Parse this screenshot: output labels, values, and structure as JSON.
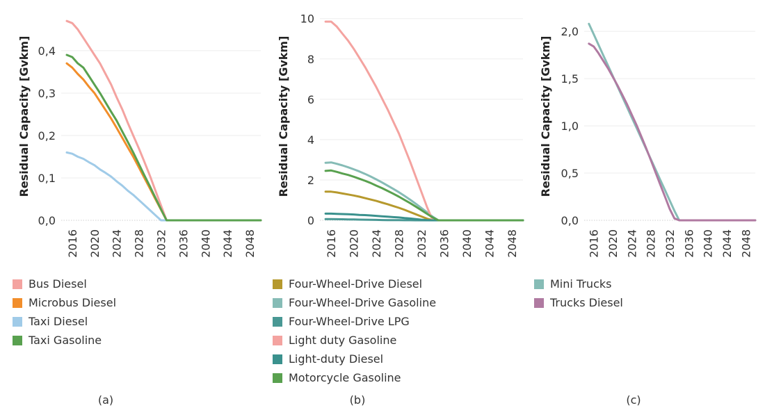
{
  "chart_data": [
    {
      "type": "line",
      "ylabel": "Residual Capacity [Gvkm]",
      "caption": "(a)",
      "ylim": [
        0,
        0.49
      ],
      "yticks": [
        0.0,
        0.1,
        0.2,
        0.3,
        0.4
      ],
      "yticklabels": [
        "0,0",
        "0,1",
        "0,2",
        "0,3",
        "0,4"
      ],
      "xlim": [
        2014,
        2050
      ],
      "xticks": [
        2016,
        2020,
        2024,
        2028,
        2032,
        2036,
        2040,
        2044,
        2048
      ],
      "xticklabels": [
        "2016",
        "2020",
        "2024",
        "2028",
        "2032",
        "2036",
        "2040",
        "2044",
        "2048"
      ],
      "x": [
        2015,
        2016,
        2017,
        2018,
        2019,
        2020,
        2021,
        2022,
        2023,
        2024,
        2025,
        2026,
        2027,
        2028,
        2029,
        2030,
        2031,
        2032,
        2033,
        2034,
        2035,
        2036,
        2037,
        2038,
        2039,
        2040,
        2041,
        2042,
        2043,
        2044,
        2045,
        2046,
        2047,
        2048,
        2049,
        2050
      ],
      "series": [
        {
          "name": "Bus Diesel",
          "color": "#f4a3a0",
          "values": [
            0.47,
            0.465,
            0.45,
            0.43,
            0.41,
            0.39,
            0.37,
            0.345,
            0.32,
            0.29,
            0.262,
            0.23,
            0.2,
            0.17,
            0.138,
            0.105,
            0.07,
            0.035,
            0.0,
            0,
            0,
            0,
            0,
            0,
            0,
            0,
            0,
            0,
            0,
            0,
            0,
            0,
            0,
            0,
            0,
            0
          ]
        },
        {
          "name": "Microbus Diesel",
          "color": "#f28e2b",
          "values": [
            0.37,
            0.36,
            0.345,
            0.332,
            0.315,
            0.3,
            0.28,
            0.26,
            0.24,
            0.218,
            0.195,
            0.172,
            0.15,
            0.125,
            0.1,
            0.075,
            0.05,
            0.025,
            0.0,
            0,
            0,
            0,
            0,
            0,
            0,
            0,
            0,
            0,
            0,
            0,
            0,
            0,
            0,
            0,
            0,
            0
          ]
        },
        {
          "name": "Taxi Diesel",
          "color": "#a0cbe8",
          "values": [
            0.16,
            0.157,
            0.15,
            0.145,
            0.137,
            0.13,
            0.12,
            0.112,
            0.103,
            0.092,
            0.082,
            0.07,
            0.06,
            0.048,
            0.036,
            0.024,
            0.012,
            0.0,
            0,
            0,
            0,
            0,
            0,
            0,
            0,
            0,
            0,
            0,
            0,
            0,
            0,
            0,
            0,
            0,
            0,
            0
          ]
        },
        {
          "name": "Taxi Gasoline",
          "color": "#59a14f",
          "values": [
            0.39,
            0.385,
            0.37,
            0.36,
            0.34,
            0.32,
            0.3,
            0.278,
            0.256,
            0.235,
            0.21,
            0.185,
            0.16,
            0.133,
            0.106,
            0.08,
            0.053,
            0.026,
            0.0,
            0,
            0,
            0,
            0,
            0,
            0,
            0,
            0,
            0,
            0,
            0,
            0,
            0,
            0,
            0,
            0,
            0
          ]
        }
      ]
    },
    {
      "type": "line",
      "ylabel": "Residual Capacity [Gvkm]",
      "caption": "(b)",
      "ylim": [
        0,
        10.3
      ],
      "yticks": [
        0,
        2,
        4,
        6,
        8,
        10
      ],
      "yticklabels": [
        "0",
        "2",
        "4",
        "6",
        "8",
        "10"
      ],
      "xlim": [
        2014,
        2050
      ],
      "xticks": [
        2016,
        2020,
        2024,
        2028,
        2032,
        2036,
        2040,
        2044,
        2048
      ],
      "xticklabels": [
        "2016",
        "2020",
        "2024",
        "2028",
        "2032",
        "2036",
        "2040",
        "2044",
        "2048"
      ],
      "x": [
        2015,
        2016,
        2017,
        2018,
        2019,
        2020,
        2021,
        2022,
        2023,
        2024,
        2025,
        2026,
        2027,
        2028,
        2029,
        2030,
        2031,
        2032,
        2033,
        2034,
        2035,
        2036,
        2037,
        2038,
        2039,
        2040,
        2041,
        2042,
        2043,
        2044,
        2045,
        2046,
        2047,
        2048,
        2049,
        2050
      ],
      "series": [
        {
          "name": "Four-Wheel-Drive Diesel",
          "color": "#b6992d",
          "values": [
            1.42,
            1.42,
            1.38,
            1.33,
            1.28,
            1.23,
            1.17,
            1.1,
            1.03,
            0.96,
            0.88,
            0.8,
            0.71,
            0.62,
            0.52,
            0.41,
            0.3,
            0.19,
            0.08,
            0.0,
            0,
            0,
            0,
            0,
            0,
            0,
            0,
            0,
            0,
            0,
            0,
            0,
            0,
            0,
            0,
            0
          ]
        },
        {
          "name": "Four-Wheel-Drive Gasoline",
          "color": "#86bcb6",
          "values": [
            2.85,
            2.87,
            2.8,
            2.72,
            2.63,
            2.53,
            2.42,
            2.3,
            2.17,
            2.03,
            1.88,
            1.72,
            1.56,
            1.39,
            1.21,
            1.02,
            0.82,
            0.61,
            0.4,
            0.18,
            0.0,
            0,
            0,
            0,
            0,
            0,
            0,
            0,
            0,
            0,
            0,
            0,
            0,
            0,
            0,
            0
          ]
        },
        {
          "name": "Four-Wheel-Drive LPG",
          "color": "#499894",
          "values": [
            0.06,
            0.06,
            0.055,
            0.05,
            0.045,
            0.04,
            0.035,
            0.03,
            0.025,
            0.02,
            0.015,
            0.01,
            0.008,
            0.006,
            0.004,
            0.002,
            0.0,
            0,
            0,
            0,
            0,
            0,
            0,
            0,
            0,
            0,
            0,
            0,
            0,
            0,
            0,
            0,
            0,
            0,
            0,
            0
          ]
        },
        {
          "name": "Light duty Gasoline",
          "color": "#f4a3a0",
          "values": [
            9.85,
            9.85,
            9.6,
            9.25,
            8.9,
            8.5,
            8.05,
            7.6,
            7.1,
            6.6,
            6.05,
            5.5,
            4.9,
            4.3,
            3.6,
            2.9,
            2.15,
            1.4,
            0.65,
            0.0,
            0,
            0,
            0,
            0,
            0,
            0,
            0,
            0,
            0,
            0,
            0,
            0,
            0,
            0,
            0,
            0
          ]
        },
        {
          "name": "Light-duty Diesel",
          "color": "#3a918d",
          "values": [
            0.33,
            0.33,
            0.32,
            0.31,
            0.3,
            0.29,
            0.27,
            0.26,
            0.24,
            0.22,
            0.2,
            0.18,
            0.16,
            0.14,
            0.11,
            0.09,
            0.06,
            0.03,
            0.01,
            0.0,
            0,
            0,
            0,
            0,
            0,
            0,
            0,
            0,
            0,
            0,
            0,
            0,
            0,
            0,
            0,
            0
          ]
        },
        {
          "name": "Motorcycle Gasoline",
          "color": "#59a14f",
          "values": [
            2.45,
            2.47,
            2.4,
            2.32,
            2.25,
            2.16,
            2.06,
            1.96,
            1.85,
            1.72,
            1.6,
            1.46,
            1.32,
            1.17,
            1.01,
            0.85,
            0.68,
            0.5,
            0.32,
            0.14,
            0.0,
            0,
            0,
            0,
            0,
            0,
            0,
            0,
            0,
            0,
            0,
            0,
            0,
            0,
            0,
            0
          ]
        }
      ]
    },
    {
      "type": "line",
      "ylabel": "Residual Capacity [Gvkm]",
      "caption": "(c)",
      "ylim": [
        0,
        2.2
      ],
      "yticks": [
        0,
        0.5,
        1.0,
        1.5,
        2.0
      ],
      "yticklabels": [
        "0,0",
        "0,5",
        "1,0",
        "1,5",
        "2,0"
      ],
      "xlim": [
        2014,
        2050
      ],
      "xticks": [
        2016,
        2020,
        2024,
        2028,
        2032,
        2036,
        2040,
        2044,
        2048
      ],
      "xticklabels": [
        "2016",
        "2020",
        "2024",
        "2028",
        "2032",
        "2036",
        "2040",
        "2044",
        "2048"
      ],
      "x": [
        2015,
        2016,
        2017,
        2018,
        2019,
        2020,
        2021,
        2022,
        2023,
        2024,
        2025,
        2026,
        2027,
        2028,
        2029,
        2030,
        2031,
        2032,
        2033,
        2034,
        2035,
        2036,
        2037,
        2038,
        2039,
        2040,
        2041,
        2042,
        2043,
        2044,
        2045,
        2046,
        2047,
        2048,
        2049,
        2050
      ],
      "series": [
        {
          "name": "Mini Trucks",
          "color": "#86bcb6",
          "values": [
            2.08,
            1.97,
            1.86,
            1.75,
            1.64,
            1.53,
            1.42,
            1.31,
            1.2,
            1.09,
            0.98,
            0.87,
            0.76,
            0.65,
            0.54,
            0.43,
            0.32,
            0.21,
            0.1,
            0.0,
            0,
            0,
            0,
            0,
            0,
            0,
            0,
            0,
            0,
            0,
            0,
            0,
            0,
            0,
            0,
            0
          ]
        },
        {
          "name": "Trucks Diesel",
          "color": "#b07aa1",
          "values": [
            1.87,
            1.84,
            1.77,
            1.69,
            1.61,
            1.52,
            1.43,
            1.33,
            1.23,
            1.12,
            1.01,
            0.89,
            0.77,
            0.64,
            0.51,
            0.38,
            0.25,
            0.12,
            0.02,
            0.0,
            0,
            0,
            0,
            0,
            0,
            0,
            0,
            0,
            0,
            0,
            0,
            0,
            0,
            0,
            0,
            0
          ]
        }
      ]
    }
  ]
}
